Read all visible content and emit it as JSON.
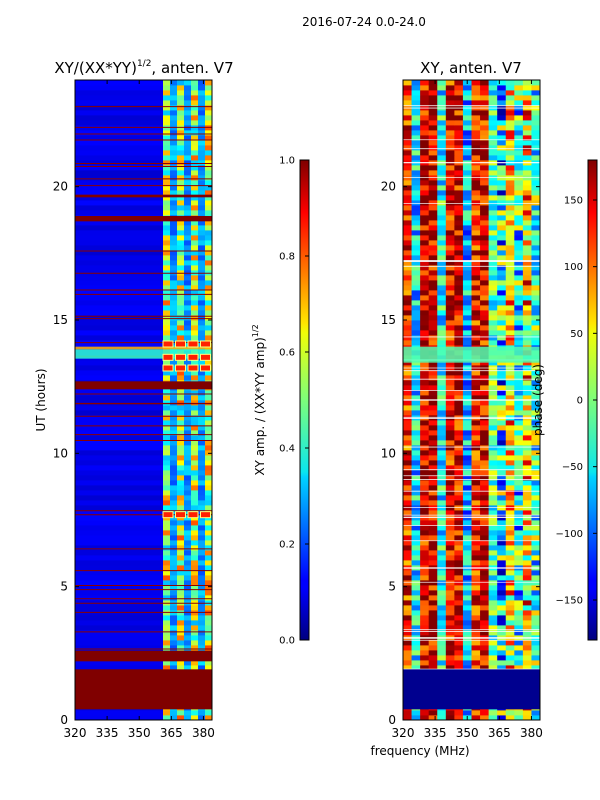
{
  "suptitle": "2016-07-24 0.0-24.0",
  "chart_data": [
    {
      "type": "heatmap",
      "title_main": "XY/(XX*YY)",
      "title_sup": "1/2",
      "title_tail": ", anten. V7",
      "xlabel": "",
      "ylabel": "UT (hours)",
      "xlim": [
        320,
        384
      ],
      "ylim": [
        0,
        24
      ],
      "xticks": [
        320,
        335,
        350,
        365,
        380
      ],
      "yticks": [
        0,
        5,
        10,
        15,
        20
      ],
      "colormap": "jet",
      "colorbar": {
        "label_main": "XY amp. / (XX*YY amp)",
        "label_sup": "1/2",
        "range": [
          0.0,
          1.0
        ],
        "ticks": [
          "0.0",
          "0.2",
          "0.4",
          "0.6",
          "0.8",
          "1.0"
        ],
        "tick_values": [
          0.0,
          0.2,
          0.4,
          0.6,
          0.8,
          1.0
        ]
      },
      "bad_bands_ut": [
        [
          0.4,
          1.9
        ],
        [
          2.2,
          2.6
        ],
        [
          12.4,
          12.7
        ],
        [
          18.7,
          18.9
        ],
        [
          19.6,
          19.7
        ]
      ],
      "highlight_ut": [
        7.7,
        13.2,
        13.6,
        14.1
      ]
    },
    {
      "type": "heatmap",
      "title": "XY, anten. V7",
      "xlabel": "frequency (MHz)",
      "ylabel": "",
      "xlim": [
        320,
        384
      ],
      "ylim": [
        0,
        24
      ],
      "xticks": [
        320,
        335,
        350,
        365,
        380
      ],
      "yticks": [
        0,
        5,
        10,
        15,
        20
      ],
      "colormap": "jet",
      "colorbar": {
        "label": "phase (deg)",
        "range": [
          -180,
          180
        ],
        "ticks": [
          "150",
          "100",
          "50",
          "0",
          "−50",
          "−100",
          "−150"
        ],
        "tick_values": [
          150,
          100,
          50,
          0,
          -50,
          -100,
          -150
        ]
      },
      "blank_bands_ut": [
        [
          0.4,
          1.9
        ]
      ],
      "line_ut": [
        1.9,
        5.7,
        7.6,
        12.0,
        13.5,
        17.2,
        20.9
      ]
    }
  ]
}
